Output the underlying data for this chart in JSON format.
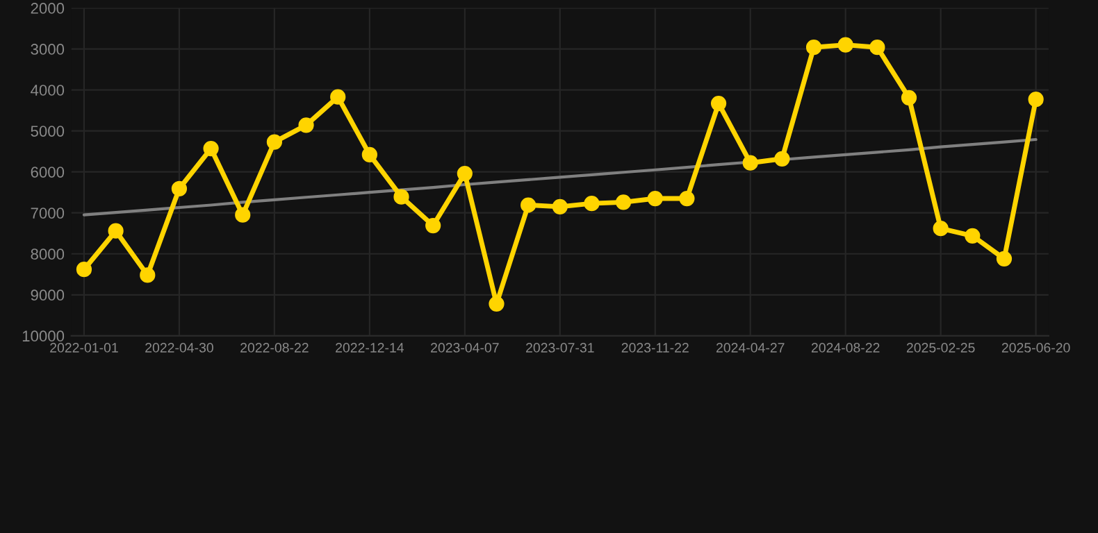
{
  "chart_data": {
    "type": "line",
    "categories": [
      "2022-01-01",
      null,
      null,
      "2022-04-30",
      null,
      null,
      "2022-08-22",
      null,
      null,
      "2022-12-14",
      null,
      null,
      "2023-04-07",
      null,
      null,
      "2023-07-31",
      null,
      null,
      "2023-11-22",
      null,
      null,
      "2024-04-27",
      null,
      null,
      "2024-08-22",
      null,
      null,
      "2025-02-25",
      null,
      null,
      "2025-06-20"
    ],
    "series": [
      {
        "color": "#ffd400",
        "marker": "circle",
        "values": [
          8380,
          7440,
          8520,
          6410,
          5430,
          7050,
          5270,
          4860,
          4170,
          5580,
          6610,
          7310,
          6040,
          9220,
          6810,
          6850,
          6770,
          6740,
          6650,
          6650,
          4330,
          5780,
          5680,
          2960,
          2900,
          2960,
          4190,
          7380,
          7560,
          8120,
          4230
        ]
      },
      {
        "type": "line",
        "color": "#808080",
        "marker": "none",
        "values": [
          7050,
          6990,
          6930,
          6870,
          6810,
          6740,
          6680,
          6620,
          6560,
          6500,
          6440,
          6380,
          6310,
          6250,
          6190,
          6130,
          6070,
          6010,
          5950,
          5890,
          5820,
          5760,
          5700,
          5640,
          5580,
          5520,
          5460,
          5390,
          5330,
          5270,
          5210
        ]
      }
    ],
    "ylim": [
      10000,
      2000
    ],
    "yticks": [
      2000,
      3000,
      4000,
      5000,
      6000,
      7000,
      8000,
      9000,
      10000
    ],
    "grid": true
  }
}
